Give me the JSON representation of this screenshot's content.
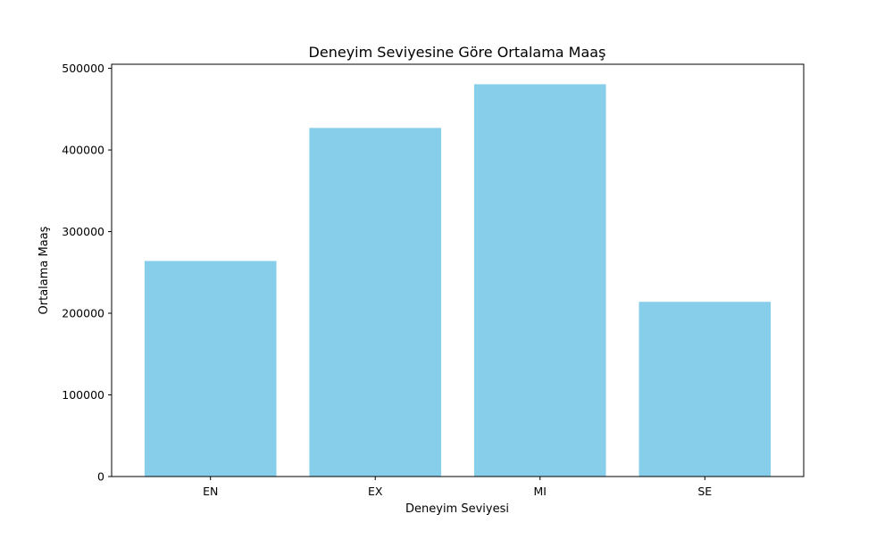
{
  "chart_data": {
    "type": "bar",
    "title": "Deneyim Seviyesine Göre Ortalama Maaş",
    "xlabel": "Deneyim Seviyesi",
    "ylabel": "Ortalama Maaş",
    "categories": [
      "EN",
      "EX",
      "MI",
      "SE"
    ],
    "values": [
      264000,
      427000,
      480500,
      214000
    ],
    "ylim": [
      0,
      505000
    ],
    "yticks": [
      0,
      100000,
      200000,
      300000,
      400000,
      500000
    ],
    "ytick_labels": [
      "0",
      "100000",
      "200000",
      "300000",
      "400000",
      "500000"
    ],
    "bar_color": "#87ceeb",
    "grid": false,
    "legend": "none"
  }
}
